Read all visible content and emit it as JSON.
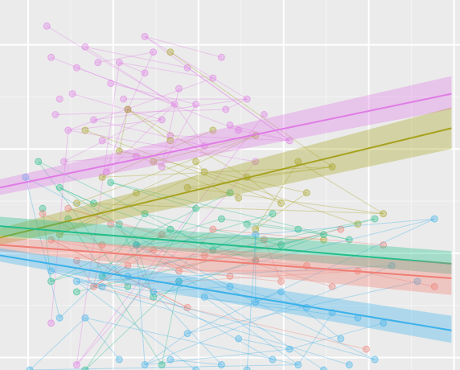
{
  "chart_data": {
    "type": "scatter",
    "title": "",
    "xlabel": "",
    "ylabel": "",
    "xlim": [
      0,
      5.4
    ],
    "ylim": [
      0,
      3.55
    ],
    "grid": true,
    "legend": "none",
    "background": "#ebebeb",
    "grid_color": "#ffffff",
    "x_breaks": [
      0.33,
      1.33,
      2.33,
      3.33,
      4.33,
      5.33
    ],
    "y_breaks": [
      0.12,
      1.12,
      2.12,
      3.12
    ],
    "series": [
      {
        "color": "#e07be6",
        "points": [
          [
            0.7,
            2.6
          ],
          [
            0.9,
            2.9
          ],
          [
            1.1,
            2.4
          ],
          [
            1.3,
            2.75
          ],
          [
            1.5,
            2.5
          ],
          [
            1.7,
            2.85
          ],
          [
            1.9,
            2.4
          ],
          [
            2.1,
            2.7
          ],
          [
            2.3,
            2.55
          ],
          [
            2.5,
            2.8
          ],
          [
            2.7,
            2.35
          ],
          [
            2.9,
            2.6
          ],
          [
            3.1,
            2.45
          ],
          [
            0.8,
            2.3
          ],
          [
            1.2,
            2.2
          ],
          [
            1.6,
            2.05
          ],
          [
            2.0,
            2.25
          ],
          [
            2.4,
            2.15
          ],
          [
            2.8,
            2.3
          ],
          [
            0.6,
            3.0
          ],
          [
            1.0,
            3.1
          ],
          [
            1.4,
            2.95
          ],
          [
            1.8,
            3.05
          ],
          [
            2.2,
            2.9
          ],
          [
            0.55,
            3.3
          ],
          [
            1.7,
            3.2
          ],
          [
            2.6,
            3.0
          ],
          [
            3.4,
            2.2
          ],
          [
            0.75,
            2.0
          ],
          [
            1.25,
            1.9
          ],
          [
            1.9,
            1.95
          ],
          [
            0.6,
            0.45
          ],
          [
            0.9,
            0.05
          ],
          [
            3.0,
            2.0
          ],
          [
            0.85,
            2.65
          ],
          [
            1.45,
            2.6
          ],
          [
            2.05,
            2.55
          ],
          [
            2.65,
            2.5
          ],
          [
            0.65,
            2.45
          ],
          [
            1.15,
            2.95
          ]
        ],
        "trend": [
          [
            0,
            1.75
          ],
          [
            5.3,
            2.65
          ]
        ],
        "band": [
          [
            0,
            1.68,
            1.83
          ],
          [
            5.3,
            2.5,
            2.82
          ]
        ]
      },
      {
        "color": "#a6a21f",
        "points": [
          [
            1.0,
            2.3
          ],
          [
            1.5,
            2.5
          ],
          [
            2.0,
            2.2
          ],
          [
            2.5,
            2.3
          ],
          [
            3.0,
            2.25
          ],
          [
            3.5,
            2.0
          ],
          [
            1.2,
            1.85
          ],
          [
            1.8,
            2.0
          ],
          [
            2.4,
            1.9
          ],
          [
            2.9,
            1.85
          ],
          [
            3.9,
            1.95
          ],
          [
            4.2,
            1.4
          ],
          [
            4.5,
            1.5
          ],
          [
            3.6,
            1.7
          ],
          [
            0.9,
            1.6
          ],
          [
            1.6,
            1.7
          ],
          [
            2.2,
            1.75
          ],
          [
            2.8,
            1.65
          ],
          [
            3.3,
            1.6
          ],
          [
            2.0,
            3.05
          ],
          [
            2.3,
            2.0
          ],
          [
            1.4,
            2.1
          ],
          [
            0.7,
            1.3
          ],
          [
            3.0,
            1.35
          ],
          [
            3.8,
            1.25
          ]
        ],
        "trend": [
          [
            0,
            1.27
          ],
          [
            5.3,
            2.32
          ]
        ],
        "band": [
          [
            0,
            1.2,
            1.36
          ],
          [
            5.3,
            2.12,
            2.52
          ]
        ]
      },
      {
        "color": "#22bd8a",
        "points": [
          [
            0.5,
            1.55
          ],
          [
            0.8,
            1.45
          ],
          [
            1.1,
            1.6
          ],
          [
            1.4,
            1.4
          ],
          [
            1.7,
            1.5
          ],
          [
            2.0,
            1.35
          ],
          [
            2.3,
            1.55
          ],
          [
            2.6,
            1.45
          ],
          [
            2.9,
            1.4
          ],
          [
            3.2,
            1.5
          ],
          [
            3.5,
            1.35
          ],
          [
            3.8,
            1.3
          ],
          [
            4.1,
            1.25
          ],
          [
            0.6,
            0.85
          ],
          [
            0.9,
            0.75
          ],
          [
            1.2,
            0.9
          ],
          [
            1.5,
            0.8
          ],
          [
            1.8,
            0.7
          ],
          [
            2.1,
            0.85
          ],
          [
            0.7,
            1.75
          ],
          [
            1.3,
            1.8
          ],
          [
            2.5,
            1.15
          ],
          [
            3.0,
            1.05
          ],
          [
            4.4,
            1.45
          ],
          [
            1.0,
            0.0
          ],
          [
            1.9,
            0.05
          ],
          [
            0.45,
            2.0
          ],
          [
            2.7,
            1.7
          ],
          [
            1.6,
            1.2
          ],
          [
            3.3,
            1.2
          ]
        ],
        "trend": [
          [
            0,
            1.38
          ],
          [
            5.3,
            1.02
          ]
        ],
        "band": [
          [
            0,
            1.29,
            1.47
          ],
          [
            5.3,
            0.92,
            1.14
          ]
        ]
      },
      {
        "color": "#f07e74",
        "points": [
          [
            0.6,
            1.25
          ],
          [
            0.9,
            1.05
          ],
          [
            1.2,
            1.2
          ],
          [
            1.5,
            1.0
          ],
          [
            1.8,
            1.15
          ],
          [
            2.1,
            0.95
          ],
          [
            2.4,
            1.1
          ],
          [
            2.7,
            0.9
          ],
          [
            3.0,
            1.05
          ],
          [
            3.3,
            0.85
          ],
          [
            3.6,
            1.0
          ],
          [
            3.9,
            0.8
          ],
          [
            4.2,
            0.95
          ],
          [
            4.5,
            1.2
          ],
          [
            5.1,
            0.8
          ],
          [
            0.8,
            1.55
          ],
          [
            1.3,
            1.4
          ],
          [
            1.9,
            1.3
          ],
          [
            2.5,
            1.35
          ],
          [
            3.1,
            1.25
          ],
          [
            4.0,
            1.35
          ],
          [
            0.5,
            1.5
          ],
          [
            1.1,
            0.8
          ],
          [
            2.2,
            0.6
          ],
          [
            4.3,
            0.2
          ]
        ],
        "trend": [
          [
            0,
            1.2
          ],
          [
            5.3,
            0.88
          ]
        ],
        "band": [
          [
            0,
            1.14,
            1.27
          ],
          [
            5.3,
            0.72,
            1.03
          ]
        ]
      },
      {
        "color": "#3bb1ea",
        "points": [
          [
            0.6,
            0.95
          ],
          [
            0.9,
            0.85
          ],
          [
            1.2,
            0.8
          ],
          [
            1.5,
            0.9
          ],
          [
            1.8,
            0.75
          ],
          [
            2.1,
            0.85
          ],
          [
            2.4,
            0.7
          ],
          [
            2.7,
            0.8
          ],
          [
            3.0,
            0.65
          ],
          [
            3.3,
            0.75
          ],
          [
            3.6,
            0.6
          ],
          [
            3.9,
            0.55
          ],
          [
            4.2,
            0.5
          ],
          [
            4.5,
            0.45
          ],
          [
            1.4,
            0.1
          ],
          [
            1.7,
            0.05
          ],
          [
            2.0,
            0.1
          ],
          [
            2.3,
            0.0
          ],
          [
            2.6,
            0.05
          ],
          [
            2.9,
            0.0
          ],
          [
            3.2,
            0.1
          ],
          [
            3.5,
            0.05
          ],
          [
            3.8,
            0.0
          ],
          [
            4.1,
            0.05
          ],
          [
            4.4,
            0.1
          ],
          [
            0.3,
            1.85
          ],
          [
            1.0,
            0.5
          ],
          [
            2.2,
            0.35
          ],
          [
            2.8,
            0.3
          ],
          [
            3.4,
            0.2
          ],
          [
            4.0,
            0.3
          ],
          [
            4.9,
            0.85
          ],
          [
            0.7,
            0.5
          ],
          [
            1.6,
            1.2
          ],
          [
            3.0,
            1.3
          ],
          [
            4.6,
            1.0
          ],
          [
            5.1,
            1.45
          ],
          [
            0.35,
            0.0
          ]
        ],
        "trend": [
          [
            0,
            1.1
          ],
          [
            5.3,
            0.38
          ]
        ],
        "band": [
          [
            0,
            1.04,
            1.17
          ],
          [
            5.3,
            0.26,
            0.52
          ]
        ]
      }
    ]
  }
}
